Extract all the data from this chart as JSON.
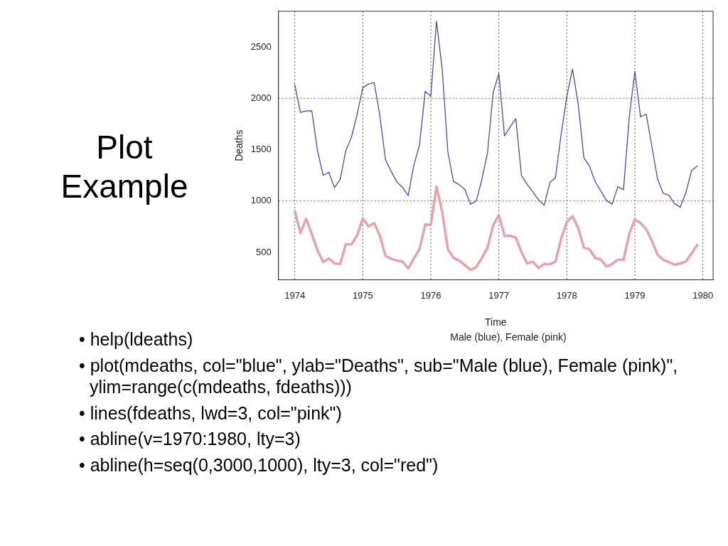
{
  "chart_data": {
    "type": "line",
    "title": "Plot Example",
    "subtitle": "Male (blue), Female (pink)",
    "xlabel": "Time",
    "ylabel": "Deaths",
    "x": [
      1974,
      1974.083,
      1974.167,
      1974.25,
      1974.333,
      1974.417,
      1974.5,
      1974.583,
      1974.667,
      1974.75,
      1974.833,
      1974.917,
      1975,
      1975.083,
      1975.167,
      1975.25,
      1975.333,
      1975.417,
      1975.5,
      1975.583,
      1975.667,
      1975.75,
      1975.833,
      1975.917,
      1976,
      1976.083,
      1976.167,
      1976.25,
      1976.333,
      1976.417,
      1976.5,
      1976.583,
      1976.667,
      1976.75,
      1976.833,
      1976.917,
      1977,
      1977.083,
      1977.167,
      1977.25,
      1977.333,
      1977.417,
      1977.5,
      1977.583,
      1977.667,
      1977.75,
      1977.833,
      1977.917,
      1978,
      1978.083,
      1978.167,
      1978.25,
      1978.333,
      1978.417,
      1978.5,
      1978.583,
      1978.667,
      1978.75,
      1978.833,
      1978.917,
      1979,
      1979.083,
      1979.167,
      1979.25,
      1979.333,
      1979.417,
      1979.5,
      1979.583,
      1979.667,
      1979.75,
      1979.833,
      1979.917
    ],
    "series": [
      {
        "color": "#4a4aa8",
        "values": [
          2134,
          1863,
          1877,
          1877,
          1492,
          1249,
          1280,
          1131,
          1209,
          1492,
          1621,
          1846,
          2103,
          2137,
          2153,
          1833,
          1403,
          1288,
          1186,
          1133,
          1053,
          1347,
          1545,
          2066,
          2020,
          2750,
          2283,
          1479,
          1189,
          1160,
          1113,
          970,
          999,
          1208,
          1467,
          2059,
          2240,
          1634,
          1722,
          1801,
          1246,
          1162,
          1087,
          1013,
          959,
          1179,
          1229,
          1655,
          2019,
          2284,
          1942,
          1423,
          1340,
          1187,
          1098,
          1004,
          970,
          1140,
          1110,
          1812,
          2263,
          1820,
          1846,
          1531,
          1215,
          1075,
          1056,
          975,
          940,
          1081,
          1294,
          1341
        ]
      },
      {
        "color": "#e6a3aa",
        "values": [
          901,
          689,
          827,
          677,
          522,
          406,
          441,
          393,
          387,
          582,
          578,
          666,
          830,
          752,
          785,
          664,
          467,
          438,
          421,
          412,
          343,
          440,
          531,
          771,
          767,
          1141,
          896,
          532,
          447,
          420,
          376,
          330,
          357,
          445,
          546,
          764,
          862,
          660,
          663,
          643,
          502,
          392,
          411,
          348,
          387,
          385,
          411,
          638,
          796,
          853,
          737,
          546,
          530,
          446,
          431,
          362,
          387,
          430,
          425,
          679,
          821,
          785,
          727,
          612,
          478,
          429,
          405,
          379,
          393,
          411,
          487,
          574
        ]
      }
    ],
    "xlim": [
      1973.76,
      1980.15
    ],
    "xticks": [
      1974,
      1975,
      1976,
      1977,
      1978,
      1979,
      1980
    ],
    "ylim": [
      233,
      2847
    ],
    "yticks": [
      500,
      1000,
      1500,
      2000,
      2500
    ],
    "ref_lines": [
      {
        "axis": "x",
        "value": 1974,
        "color": "#555555",
        "line_style": "dotted"
      },
      {
        "axis": "x",
        "value": 1975,
        "color": "#555555",
        "line_style": "dotted"
      },
      {
        "axis": "x",
        "value": 1976,
        "color": "#555555",
        "line_style": "dotted"
      },
      {
        "axis": "x",
        "value": 1977,
        "color": "#555555",
        "line_style": "dotted"
      },
      {
        "axis": "x",
        "value": 1978,
        "color": "#555555",
        "line_style": "dotted"
      },
      {
        "axis": "x",
        "value": 1979,
        "color": "#555555",
        "line_style": "dotted"
      },
      {
        "axis": "x",
        "value": 1980,
        "color": "#555555",
        "line_style": "dotted"
      },
      {
        "axis": "y",
        "value": 1000,
        "color": "#c04040",
        "line_style": "dotted"
      },
      {
        "axis": "y",
        "value": 2000,
        "color": "#c04040",
        "line_style": "dotted"
      }
    ],
    "grid": false,
    "legend": false,
    "marker": "none",
    "line_style": "solid",
    "annotations": [
      "• help(ldeaths)",
      "• plot(mdeaths, col=\"blue\", ylab=\"Deaths\", sub=\"Male (blue), Female (pink)\", ylim=range(c(mdeaths, fdeaths)))",
      "• lines(fdeaths, lwd=3, col=\"pink\")",
      "• abline(v=1970:1980, lty=3)",
      "• abline(h=seq(0,3000,1000), lty=3, col=\"red\")"
    ]
  }
}
